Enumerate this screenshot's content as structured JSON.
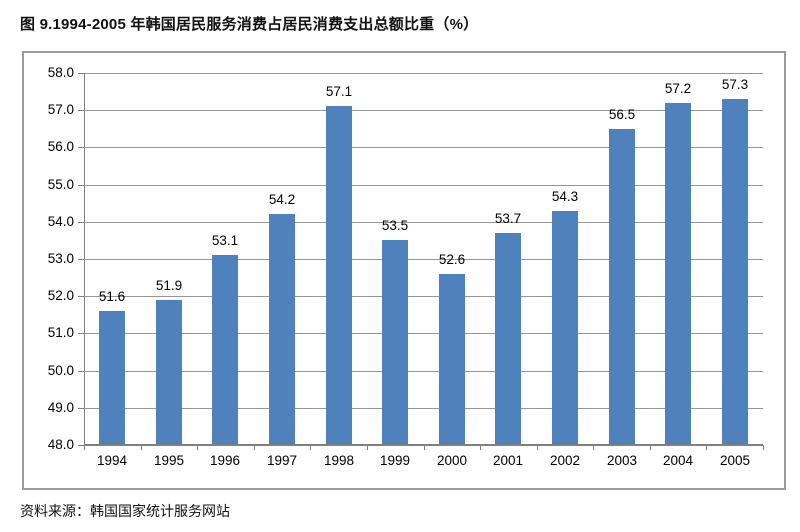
{
  "figure": {
    "title": "图 9.1994-2005 年韩国居民服务消费占居民消费支出总额比重（%）",
    "source": "资料来源：韩国国家统计服务网站"
  },
  "chart_data": {
    "type": "bar",
    "title": "图 9.1994-2005 年韩国居民服务消费占居民消费支出总额比重（%）",
    "categories": [
      "1994",
      "1995",
      "1996",
      "1997",
      "1998",
      "1999",
      "2000",
      "2001",
      "2002",
      "2003",
      "2004",
      "2005"
    ],
    "values": [
      51.6,
      51.9,
      53.1,
      54.2,
      57.1,
      53.5,
      52.6,
      53.7,
      54.3,
      56.5,
      57.2,
      57.3
    ],
    "xlabel": "",
    "ylabel": "",
    "ylim": [
      48.0,
      58.0
    ],
    "ytick_step": 1.0,
    "yticks": [
      "48.0",
      "49.0",
      "50.0",
      "51.0",
      "52.0",
      "53.0",
      "54.0",
      "55.0",
      "56.0",
      "57.0",
      "58.0"
    ],
    "grid": true,
    "legend": "none",
    "data_labels": true,
    "colors": {
      "bar": "#4F81BD",
      "gridline": "#969696",
      "axis": "#7f7f7f",
      "chart_border": "#9B9B9B",
      "text": "#000000"
    }
  }
}
